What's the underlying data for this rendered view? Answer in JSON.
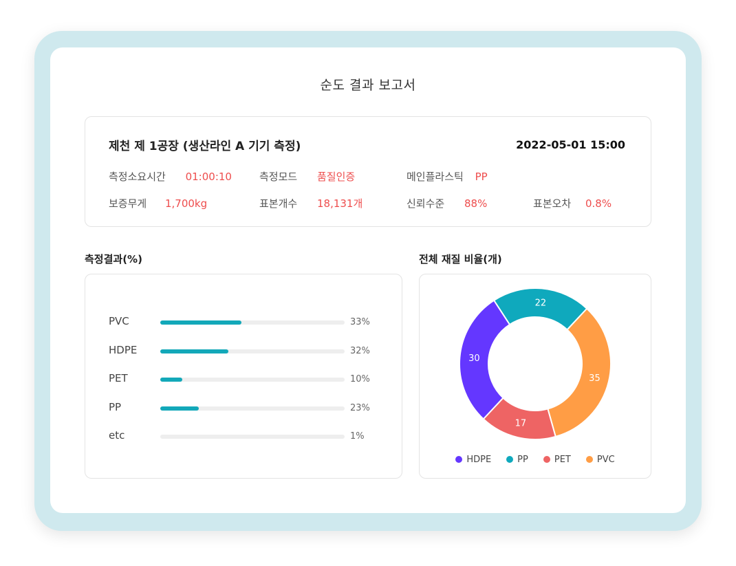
{
  "report": {
    "title": "순도 결과 보고서"
  },
  "info": {
    "heading": "제천 제 1공장 (생산라인 A 기기 측정)",
    "datetime": "2022-05-01 15:00",
    "items": [
      {
        "label": "측정소요시간",
        "value": "01:00:10"
      },
      {
        "label": "측정모드",
        "value": "품질인증"
      },
      {
        "label": "메인플라스틱",
        "value": "PP"
      },
      {
        "label": "보증무게",
        "value": "1,700kg"
      },
      {
        "label": "표본개수",
        "value": "18,131개"
      },
      {
        "label": "신뢰수준",
        "value": "88%"
      },
      {
        "label": "표본오차",
        "value": "0.8%"
      }
    ]
  },
  "chart_data": [
    {
      "type": "bar",
      "orientation": "horizontal",
      "title": "측정결과(%)",
      "categories": [
        "PVC",
        "HDPE",
        "PET",
        "PP",
        "etc"
      ],
      "values": [
        33,
        32,
        10,
        23,
        1
      ],
      "value_labels": [
        "33%",
        "32%",
        "10%",
        "23%",
        "1%"
      ],
      "fill_fractions": [
        0.44,
        0.37,
        0.12,
        0.21,
        0.0
      ],
      "bar_color": "#13a8b9",
      "track_color": "#eeeeee"
    },
    {
      "type": "pie",
      "donut": true,
      "title": "전체 재질 비율(개)",
      "legend_position": "bottom",
      "slices": [
        {
          "name": "PP",
          "value": 22,
          "color": "#0fa9bd"
        },
        {
          "name": "PVC",
          "value": 35,
          "color": "#ff9d45"
        },
        {
          "name": "PET",
          "value": 17,
          "color": "#ee6464"
        },
        {
          "name": "HDPE",
          "value": 30,
          "color": "#6437ff"
        }
      ],
      "legend": [
        {
          "name": "HDPE",
          "color": "#6437ff"
        },
        {
          "name": "PP",
          "color": "#0fa9bd"
        },
        {
          "name": "PET",
          "color": "#ee6464"
        },
        {
          "name": "PVC",
          "color": "#ff9d45"
        }
      ]
    }
  ]
}
